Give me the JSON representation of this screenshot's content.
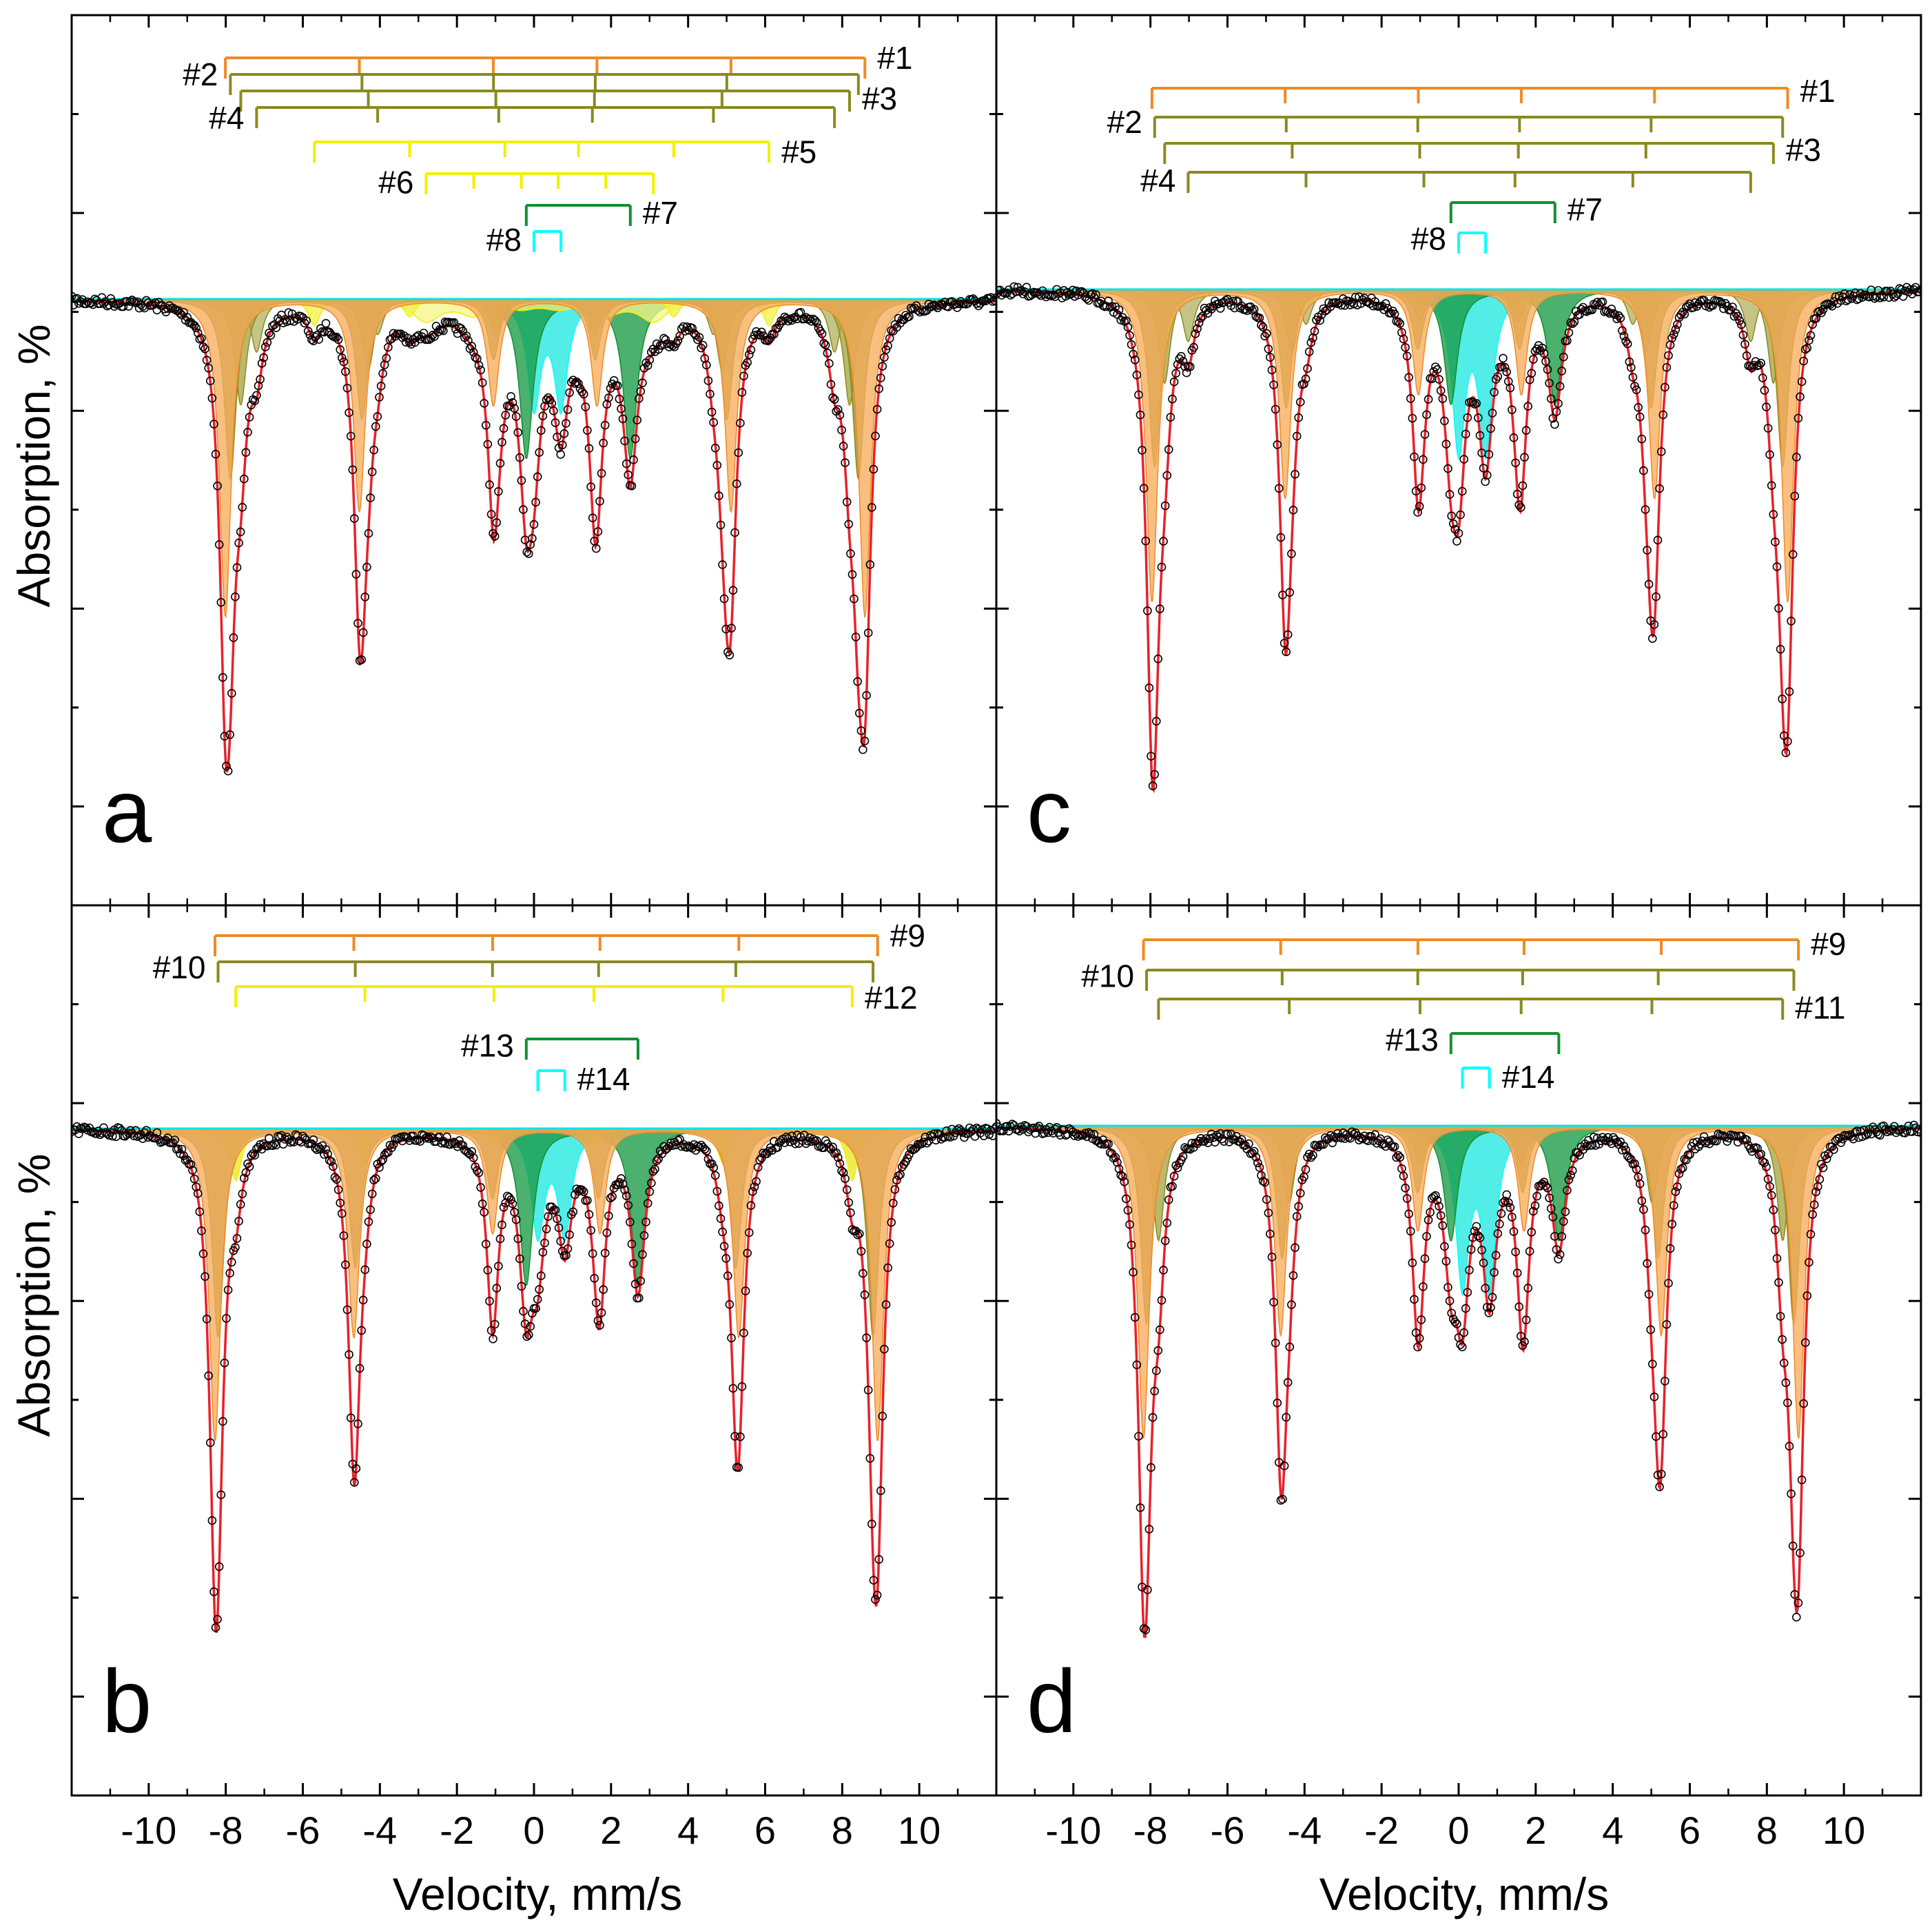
{
  "figure": {
    "xlabel": "Velocity, mm/s",
    "ylabel": "Absorption, %",
    "xlim": [
      -12,
      12
    ],
    "xticks": [
      -10,
      -8,
      -6,
      -4,
      -2,
      0,
      2,
      4,
      6,
      8,
      10
    ],
    "xtick_labels": [
      "-10",
      "-8",
      "-6",
      "-4",
      "-2",
      "0",
      "2",
      "4",
      "6",
      "8",
      "10"
    ]
  },
  "chart_data": [
    {
      "type": "line",
      "panel": "a",
      "label": "a",
      "ylim": [
        0,
        1
      ],
      "components": [
        {
          "name": "#1",
          "kind": "sextet",
          "color": "#f08a24",
          "fill": "#f7ad5c",
          "center": 0.29,
          "splitting": 16.6,
          "depth": 0.6
        },
        {
          "name": "#2",
          "kind": "sextet",
          "color": "#8a8a1e",
          "fill": "#8f8f2a",
          "center": 0.27,
          "splitting": 16.3,
          "depth": 0.34
        },
        {
          "name": "#3",
          "kind": "sextet",
          "color": "#8a8a1e",
          "fill": "#a5a545",
          "center": 0.29,
          "splitting": 15.8,
          "depth": 0.2
        },
        {
          "name": "#4",
          "kind": "sextet",
          "color": "#8a8a1e",
          "fill": "#b3b365",
          "center": 0.3,
          "splitting": 15.0,
          "depth": 0.1
        },
        {
          "name": "#5",
          "kind": "sextet",
          "color": "#f0f000",
          "fill": "#f2f24a",
          "center": 0.2,
          "splitting": 11.8,
          "depth": 0.05
        },
        {
          "name": "#6",
          "kind": "sextet",
          "color": "#f0f000",
          "fill": "#f5f58a",
          "center": 0.15,
          "splitting": 5.9,
          "depth": 0.04
        },
        {
          "name": "#7",
          "kind": "doublet",
          "color": "#11902e",
          "fill": "#1a9a45",
          "positions": [
            -0.2,
            2.5
          ],
          "depth": 0.3
        },
        {
          "name": "#8",
          "kind": "doublet",
          "color": "#00ffff",
          "fill": "#23e8e0",
          "positions": [
            0.0,
            0.7
          ],
          "depth": 0.2
        }
      ],
      "series": [
        {
          "name": "experimental",
          "marker": "open-circle",
          "color": "#000000"
        },
        {
          "name": "fit",
          "color": "#e8212a"
        }
      ]
    },
    {
      "type": "line",
      "panel": "b",
      "label": "b",
      "ylim": [
        0,
        1
      ],
      "components": [
        {
          "name": "#9",
          "kind": "sextet",
          "color": "#f08a24",
          "fill": "#f7ad5c",
          "center": 0.32,
          "splitting": 17.2,
          "depth": 0.6
        },
        {
          "name": "#10",
          "kind": "sextet",
          "color": "#8a8a1e",
          "fill": "#8f8f2a",
          "center": 0.3,
          "splitting": 17.0,
          "depth": 0.4
        },
        {
          "name": "#12",
          "kind": "sextet",
          "color": "#f0f000",
          "fill": "#e8e820",
          "center": 0.26,
          "splitting": 16.0,
          "depth": 0.1
        },
        {
          "name": "#13",
          "kind": "doublet",
          "color": "#11902e",
          "fill": "#1a9a45",
          "positions": [
            -0.2,
            2.7
          ],
          "depth": 0.3
        },
        {
          "name": "#14",
          "kind": "doublet",
          "color": "#00ffff",
          "fill": "#23e8e0",
          "positions": [
            0.1,
            0.8
          ],
          "depth": 0.2
        }
      ],
      "series": [
        {
          "name": "experimental",
          "marker": "open-circle",
          "color": "#000000"
        },
        {
          "name": "fit",
          "color": "#e8212a"
        }
      ]
    },
    {
      "type": "line",
      "panel": "c",
      "label": "c",
      "ylim": [
        0,
        1
      ],
      "components": [
        {
          "name": "#1",
          "kind": "sextet",
          "color": "#f08a24",
          "fill": "#f7ad5c",
          "center": 0.29,
          "splitting": 16.5,
          "depth": 0.6
        },
        {
          "name": "#2",
          "kind": "sextet",
          "color": "#8a8a1e",
          "fill": "#8f8f2a",
          "center": 0.26,
          "splitting": 16.3,
          "depth": 0.34
        },
        {
          "name": "#3",
          "kind": "sextet",
          "color": "#8a8a1e",
          "fill": "#a5a545",
          "center": 0.27,
          "splitting": 15.8,
          "depth": 0.18
        },
        {
          "name": "#4",
          "kind": "sextet",
          "color": "#8a8a1e",
          "fill": "#b3b365",
          "center": 0.28,
          "splitting": 14.6,
          "depth": 0.1
        },
        {
          "name": "#7",
          "kind": "doublet",
          "color": "#11902e",
          "fill": "#1a9a45",
          "positions": [
            -0.2,
            2.5
          ],
          "depth": 0.22
        },
        {
          "name": "#8",
          "kind": "doublet",
          "color": "#00ffff",
          "fill": "#23e8e0",
          "positions": [
            0.0,
            0.7
          ],
          "depth": 0.3
        }
      ],
      "series": [
        {
          "name": "experimental",
          "marker": "open-circle",
          "color": "#000000"
        },
        {
          "name": "fit",
          "color": "#e8212a"
        }
      ]
    },
    {
      "type": "line",
      "panel": "d",
      "label": "d",
      "ylim": [
        0,
        1
      ],
      "components": [
        {
          "name": "#9",
          "kind": "sextet",
          "color": "#f08a24",
          "fill": "#f7ad5c",
          "center": 0.32,
          "splitting": 17.0,
          "depth": 0.6
        },
        {
          "name": "#10",
          "kind": "sextet",
          "color": "#8a8a1e",
          "fill": "#8f8f2a",
          "center": 0.3,
          "splitting": 16.8,
          "depth": 0.38
        },
        {
          "name": "#11",
          "kind": "sextet",
          "color": "#8a8a1e",
          "fill": "#a5a545",
          "center": 0.31,
          "splitting": 16.2,
          "depth": 0.22
        },
        {
          "name": "#13",
          "kind": "doublet",
          "color": "#11902e",
          "fill": "#1a9a45",
          "positions": [
            -0.2,
            2.6
          ],
          "depth": 0.22
        },
        {
          "name": "#14",
          "kind": "doublet",
          "color": "#00ffff",
          "fill": "#23e8e0",
          "positions": [
            0.1,
            0.8
          ],
          "depth": 0.3
        }
      ],
      "series": [
        {
          "name": "experimental",
          "marker": "open-circle",
          "color": "#000000"
        },
        {
          "name": "fit",
          "color": "#e8212a"
        }
      ]
    }
  ]
}
